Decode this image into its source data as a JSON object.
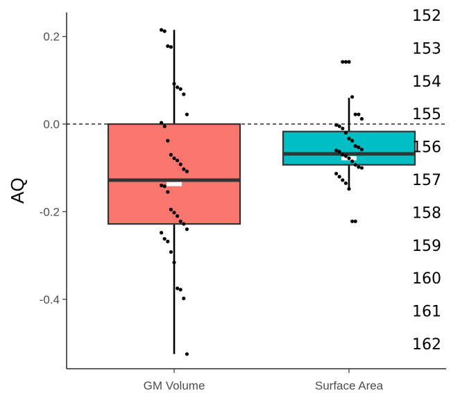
{
  "chart_data": {
    "type": "box",
    "title": "",
    "xlabel": "",
    "ylabel": "AQ",
    "ylim": [
      -0.53,
      0.25
    ],
    "yticks": [
      0.2,
      0.0,
      -0.2,
      -0.4
    ],
    "ytick_labels": [
      "0.2",
      "0.0",
      "-0.2",
      "-0.4"
    ],
    "reference_line": {
      "y": 0.0,
      "style": "dashed"
    },
    "grid": false,
    "legend": "none",
    "categories": [
      "GM Volume",
      "Surface Area"
    ],
    "boxes": [
      {
        "name": "GM Volume",
        "color": "#F8766D",
        "whisker_low": -0.525,
        "q1": -0.228,
        "median": -0.128,
        "mean": -0.137,
        "q3": 0.0,
        "whisker_high": 0.215,
        "points": [
          0.215,
          0.212,
          0.178,
          0.176,
          0.092,
          0.084,
          0.08,
          0.068,
          0.022,
          0.003,
          -0.005,
          -0.038,
          -0.07,
          -0.078,
          -0.083,
          -0.092,
          -0.103,
          -0.108,
          -0.14,
          -0.142,
          -0.155,
          -0.195,
          -0.202,
          -0.21,
          -0.222,
          -0.228,
          -0.24,
          -0.248,
          -0.262,
          -0.268,
          -0.292,
          -0.316,
          -0.375,
          -0.378,
          -0.398,
          -0.525
        ]
      },
      {
        "name": "Surface Area",
        "color": "#00BFC4",
        "whisker_low": -0.148,
        "q1": -0.093,
        "median": -0.068,
        "mean": -0.078,
        "q3": -0.017,
        "whisker_high": 0.06,
        "points": [
          0.142,
          0.142,
          0.142,
          0.062,
          0.022,
          0.022,
          0.012,
          -0.002,
          -0.005,
          -0.01,
          -0.02,
          -0.033,
          -0.038,
          -0.05,
          -0.053,
          -0.058,
          -0.06,
          -0.063,
          -0.07,
          -0.073,
          -0.078,
          -0.085,
          -0.093,
          -0.098,
          -0.1,
          -0.113,
          -0.12,
          -0.128,
          -0.135,
          -0.148,
          -0.222,
          -0.222
        ]
      }
    ]
  },
  "line_numbers": [
    "152",
    "153",
    "154",
    "155",
    "156",
    "157",
    "158",
    "159",
    "160",
    "161",
    "162"
  ]
}
